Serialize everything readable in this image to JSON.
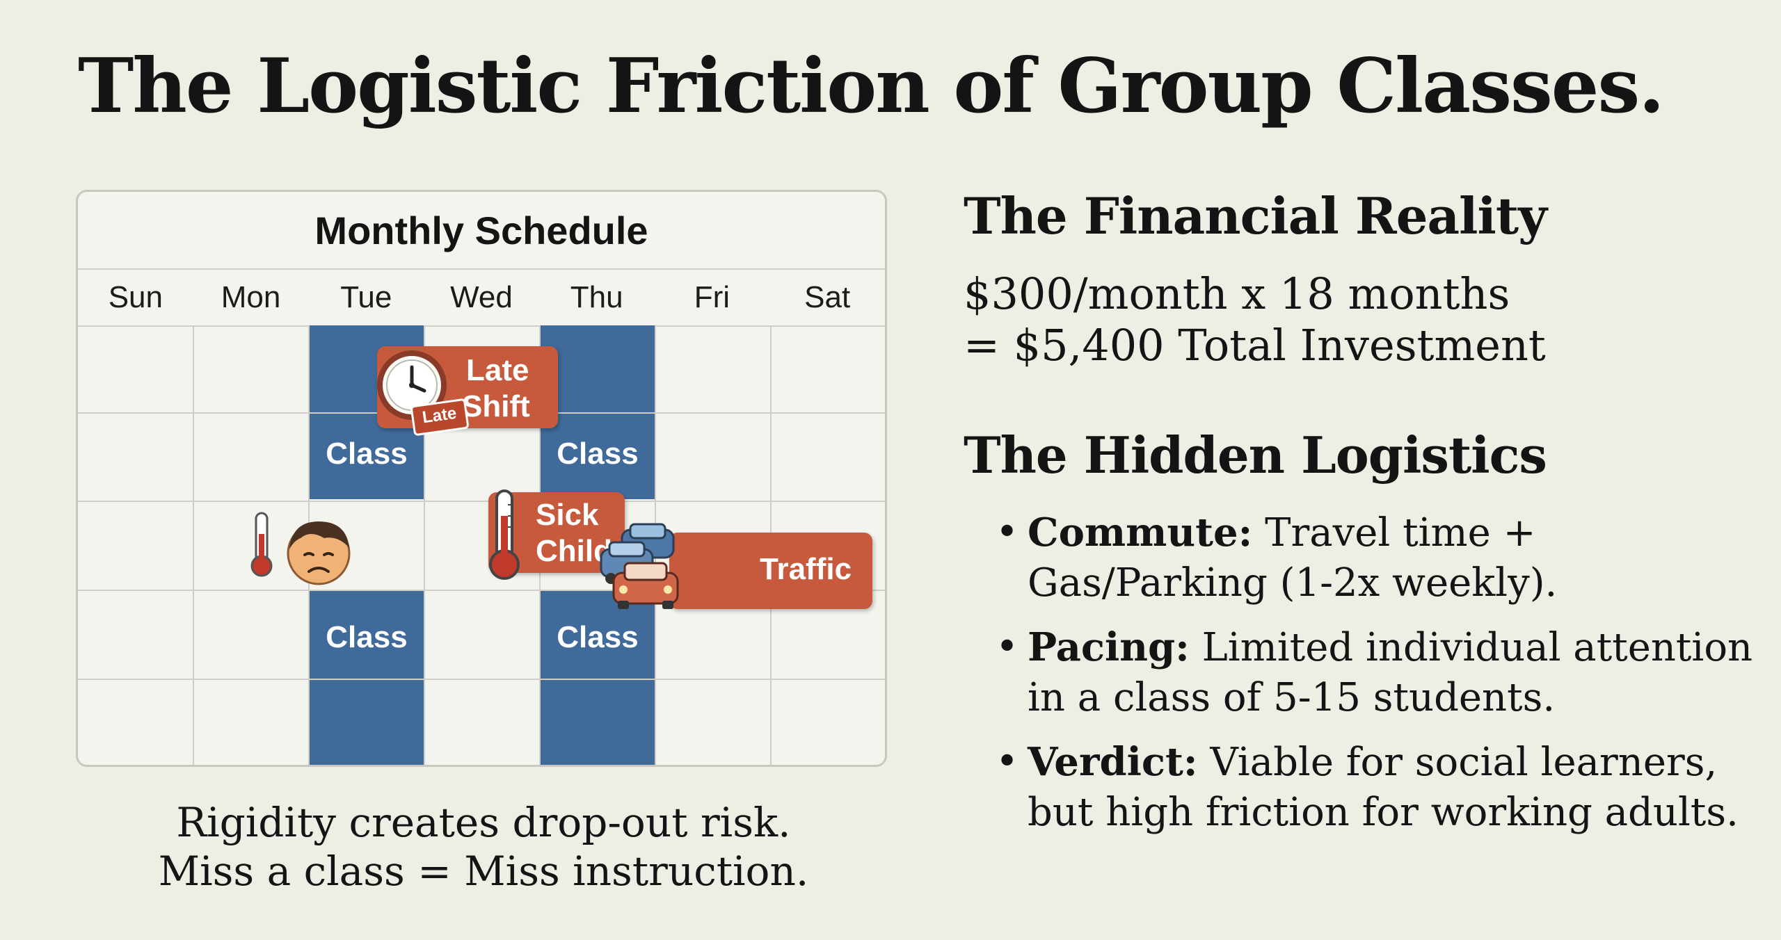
{
  "title": "The Logistic Friction of Group Classes.",
  "calendar": {
    "title": "Monthly Schedule",
    "days": [
      "Sun",
      "Mon",
      "Tue",
      "Wed",
      "Thu",
      "Fri",
      "Sat"
    ],
    "class_label": "Class",
    "events": {
      "late_shift": {
        "line1": "Late",
        "line2": "Shift",
        "badge": "Late"
      },
      "sick_child": {
        "line1": "Sick",
        "line2": "Child"
      },
      "traffic": {
        "label": "Traffic"
      }
    },
    "caption_line1": "Rigidity creates drop-out risk.",
    "caption_line2": "Miss a class = Miss instruction."
  },
  "financial": {
    "heading": "The Financial Reality",
    "line1": "$300/month x 18 months",
    "line2": "= $5,400 Total Investment"
  },
  "logistics": {
    "heading": "The Hidden Logistics",
    "bullets": [
      {
        "term": "Commute:",
        "text": " Travel time + Gas/Parking (1-2x weekly)."
      },
      {
        "term": "Pacing:",
        "text": " Limited individual attention in a class of 5-15 students."
      },
      {
        "term": "Verdict:",
        "text": " Viable for social learners, but high friction for working adults."
      }
    ]
  },
  "colors": {
    "background": "#eeeee4",
    "class_blue": "#3f6a99",
    "event_orange": "#c75a3c"
  }
}
